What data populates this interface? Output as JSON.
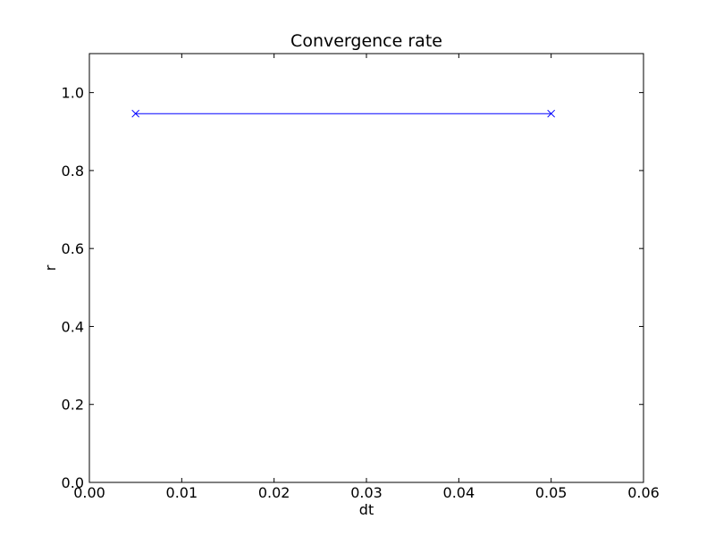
{
  "chart_data": {
    "type": "line",
    "title": "Convergence rate",
    "xlabel": "dt",
    "ylabel": "r",
    "xlim": [
      0.0,
      0.06
    ],
    "ylim": [
      0.0,
      1.1
    ],
    "x_ticks": [
      "0.00",
      "0.01",
      "0.02",
      "0.03",
      "0.04",
      "0.05",
      "0.06"
    ],
    "x_tick_values": [
      0.0,
      0.01,
      0.02,
      0.03,
      0.04,
      0.05,
      0.06
    ],
    "y_ticks": [
      "0.0",
      "0.2",
      "0.4",
      "0.6",
      "0.8",
      "1.0"
    ],
    "y_tick_values": [
      0.0,
      0.2,
      0.4,
      0.6,
      0.8,
      1.0
    ],
    "grid": false,
    "legend": "none",
    "series": [
      {
        "color": "#0000ff",
        "marker": "x",
        "x": [
          0.005,
          0.05
        ],
        "y": [
          0.946,
          0.946
        ]
      }
    ]
  }
}
